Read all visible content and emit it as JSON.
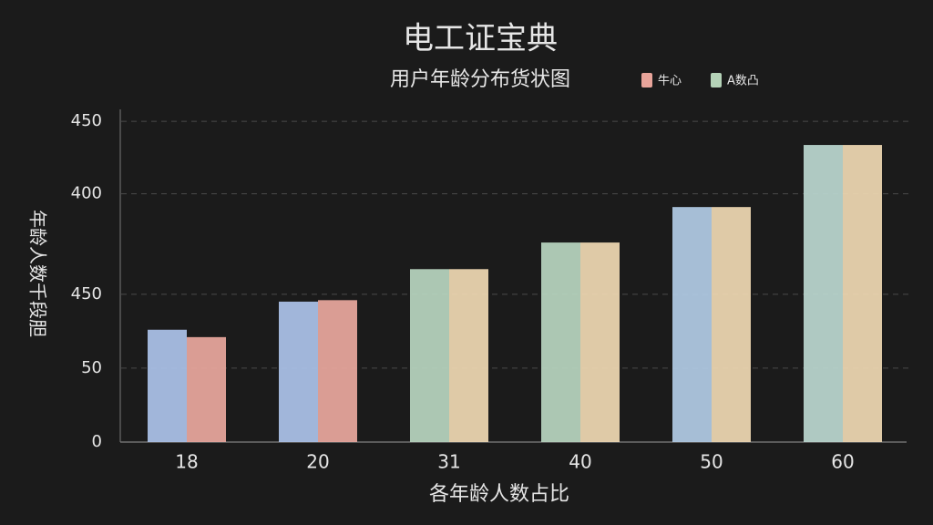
{
  "chart_data": {
    "type": "bar",
    "title": "电工证宝典",
    "subtitle": "用户年龄分布货状图",
    "x_label": "各年龄人数占比",
    "y_label": "年龄人数千段胆",
    "categories": [
      "18",
      "20",
      "31",
      "40",
      "50",
      "60"
    ],
    "series": [
      {
        "name": "牛心",
        "color": "#e8a49a",
        "values": [
          76,
          95,
          117,
          135,
          159,
          201
        ],
        "colors": [
          "#adc3ea",
          "#adc3ea",
          "#b9d6c0",
          "#b9d6c0",
          "#b2cce6",
          "#bcd8d0"
        ]
      },
      {
        "name": "A数凸",
        "color": "#b5d3b8",
        "values": [
          71,
          96,
          117,
          135,
          159,
          201
        ],
        "colors": [
          "#eaa89e",
          "#eaa89e",
          "#f0d9b3",
          "#f0d9b3",
          "#f0d9b3",
          "#f0d9b3"
        ]
      }
    ],
    "ylim": [
      0,
      222
    ],
    "yticks": [
      0,
      50,
      {
        "value": 100,
        "label": "450"
      },
      {
        "value": 168,
        "label": "400"
      },
      {
        "value": 217,
        "label": "450"
      }
    ],
    "grid": true
  }
}
